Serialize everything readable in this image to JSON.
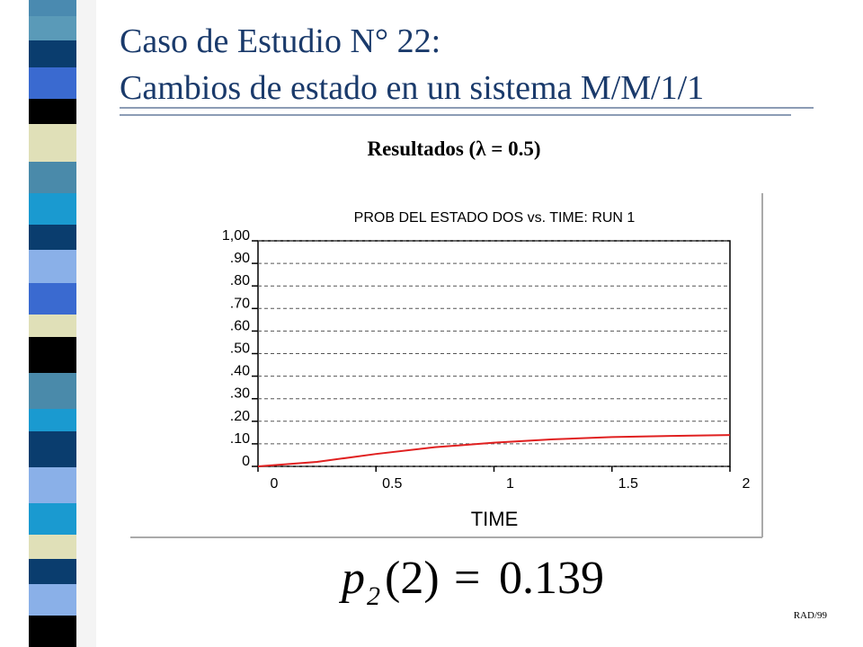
{
  "header": {
    "title_line1": "Caso de Estudio N° 22:",
    "title_line2": "Cambios de estado en un sistema M/M/1/1"
  },
  "subtitle": "Resultados (λ = 0.5)",
  "chart_data": {
    "type": "line",
    "title": "PROB DEL ESTADO DOS vs. TIME: RUN 1",
    "x_label": "TIME",
    "x": [
      0,
      0.25,
      0.5,
      0.75,
      1,
      1.25,
      1.5,
      1.75,
      2
    ],
    "values": [
      0,
      0.02,
      0.055,
      0.085,
      0.105,
      0.12,
      0.13,
      0.135,
      0.139
    ],
    "color": "#e02020",
    "xlim": [
      0,
      2
    ],
    "xticks": [
      0,
      0.5,
      1,
      1.5,
      2
    ],
    "ylim": [
      0,
      1
    ],
    "yticks": [
      0,
      {
        "value": 0.1,
        "label": ".10"
      },
      {
        "value": 0.2,
        "label": ".20"
      },
      {
        "value": 0.3,
        "label": ".30"
      },
      {
        "value": 0.4,
        "label": ".40"
      },
      {
        "value": 0.5,
        "label": ".50"
      },
      {
        "value": 0.6,
        "label": ".60"
      },
      {
        "value": 0.7,
        "label": ".70"
      },
      {
        "value": 0.8,
        "label": ".80"
      },
      {
        "value": 0.9,
        "label": ".90"
      },
      {
        "value": 1,
        "label": "1,00"
      }
    ],
    "grid": true
  },
  "formula": {
    "symbol": "p",
    "subscript": "2",
    "argument": "(2)",
    "equals": "=",
    "value": "0.139"
  },
  "footer": "RAD/99"
}
